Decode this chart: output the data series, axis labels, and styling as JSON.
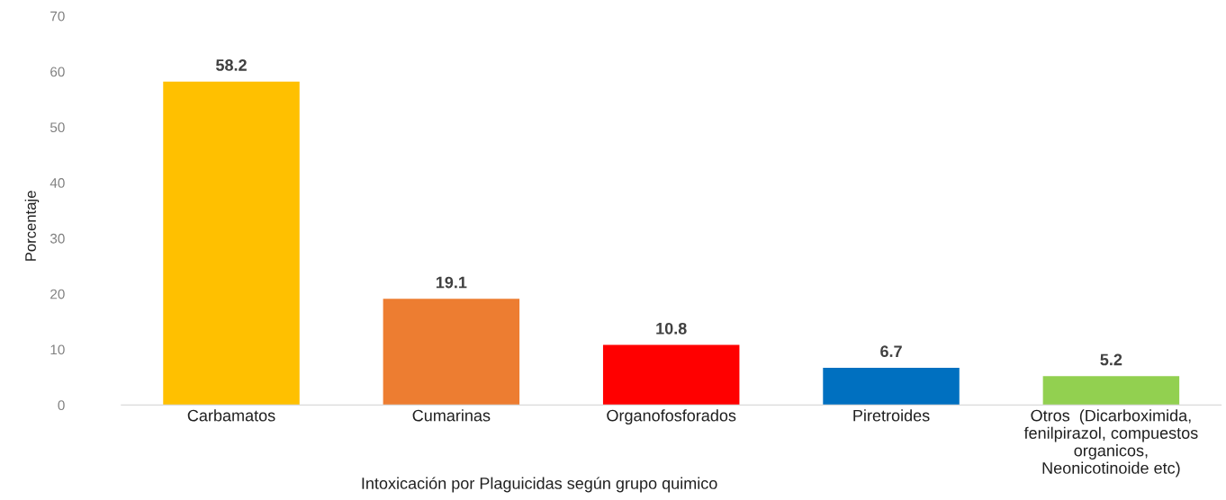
{
  "chart_data": {
    "type": "bar",
    "categories": [
      "Carbamatos",
      "Cumarinas",
      "Organofosforados",
      "Piretroides",
      "Otros  (Dicarboximida,\nfenilpirazol, compuestos\norganicos,\nNeonicotinoide etc)"
    ],
    "values": [
      58.2,
      19.1,
      10.8,
      6.7,
      5.2
    ],
    "colors": [
      "#ffc000",
      "#ed7d31",
      "#ff0000",
      "#0070c0",
      "#92d050"
    ],
    "xlabel": "Intoxicación por Plaguicidas según grupo quimico",
    "ylabel": "Porcentaje",
    "ylim": [
      0,
      70
    ],
    "yticks": [
      0,
      10,
      20,
      30,
      40,
      50,
      60,
      70
    ],
    "data_labels": true,
    "grid": false,
    "legend": false
  }
}
